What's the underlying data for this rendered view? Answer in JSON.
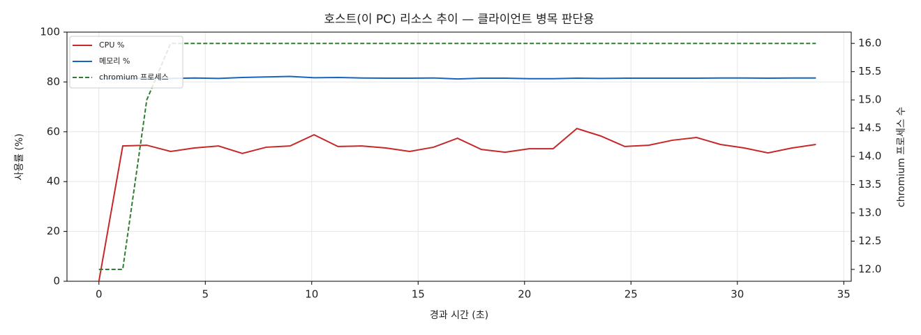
{
  "chart_data": {
    "type": "line",
    "title": "호스트(이 PC) 리소스 추이 — 클라이언트 병목 판단용",
    "x_label": "경과 시간 (초)",
    "y_label": "사용률 (%)",
    "y2_label": "chromium 프로세스 수",
    "x": [
      0,
      1.12,
      2.25,
      3.37,
      4.49,
      5.62,
      6.74,
      7.86,
      8.98,
      10.11,
      11.23,
      12.35,
      13.48,
      14.6,
      15.72,
      16.85,
      17.97,
      19.09,
      20.21,
      21.34,
      22.46,
      23.58,
      24.71,
      25.83,
      26.95,
      28.08,
      29.2,
      30.32,
      31.44,
      32.57,
      33.69
    ],
    "series": [
      {
        "name": "CPU %",
        "color": "#c62828",
        "values": [
          0,
          54.3,
          54.6,
          52.1,
          53.5,
          54.3,
          51.3,
          53.8,
          54.3,
          58.8,
          54.1,
          54.3,
          53.5,
          52.1,
          53.8,
          57.4,
          52.9,
          51.8,
          53.2,
          53.2,
          61.3,
          58.3,
          54.1,
          54.6,
          56.6,
          57.7,
          54.9,
          53.5,
          51.5,
          53.5,
          54.9
        ]
      },
      {
        "name": "메모리 %",
        "color": "#1565c0",
        "values": [
          81.3,
          81.4,
          81.5,
          81.4,
          81.6,
          81.4,
          81.8,
          82.0,
          82.2,
          81.7,
          81.8,
          81.6,
          81.5,
          81.5,
          81.6,
          81.2,
          81.5,
          81.5,
          81.3,
          81.3,
          81.5,
          81.4,
          81.5,
          81.5,
          81.5,
          81.5,
          81.6,
          81.6,
          81.5,
          81.6,
          81.6
        ]
      },
      {
        "name": "chromium 프로세스",
        "color": "#2e7d32",
        "dashed": true,
        "axis": "y2",
        "values": [
          12,
          12,
          15,
          16,
          16,
          16,
          16,
          16,
          16,
          16,
          16,
          16,
          16,
          16,
          16,
          16,
          16,
          16,
          16,
          16,
          16,
          16,
          16,
          16,
          16,
          16,
          16,
          16,
          16,
          16,
          16
        ]
      }
    ],
    "xlim": [
      -1.5,
      35.35
    ],
    "xticks": [
      0,
      5,
      10,
      15,
      20,
      25,
      30,
      35
    ],
    "ylim": [
      0,
      100
    ],
    "yticks": [
      0,
      20,
      40,
      60,
      80,
      100
    ],
    "y2lim": [
      11.79,
      16.2
    ],
    "y2ticks": [
      {
        "value": 12,
        "label": "12.0"
      },
      {
        "value": 12.5,
        "label": "12.5"
      },
      {
        "value": 13,
        "label": "13.0"
      },
      {
        "value": 13.5,
        "label": "13.5"
      },
      {
        "value": 14,
        "label": "14.0"
      },
      {
        "value": 14.5,
        "label": "14.5"
      },
      {
        "value": 15,
        "label": "15.0"
      },
      {
        "value": 15.5,
        "label": "15.5"
      },
      {
        "value": 16,
        "label": "16.0"
      }
    ],
    "grid": true,
    "legend": "upper-left"
  }
}
